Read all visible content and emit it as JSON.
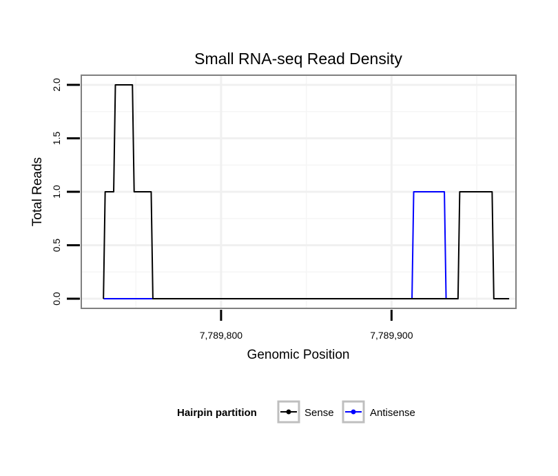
{
  "chart_data": {
    "type": "line",
    "title": "Small RNA-seq Read Density",
    "xlabel": "Genomic Position",
    "ylabel": "Total Reads",
    "xlim": [
      7789718,
      7789973
    ],
    "ylim": [
      -0.09,
      2.09
    ],
    "x_ticks": [
      7789800,
      7789900
    ],
    "x_tick_labels": [
      "7,789,800",
      "7,789,900"
    ],
    "y_ticks": [
      0,
      0.5,
      1,
      1.5,
      2
    ],
    "y_tick_labels": [
      "0.0",
      "0.5",
      "1.0",
      "1.5",
      "2.0"
    ],
    "grid": true,
    "legend": {
      "title": "Hairpin partition",
      "position": "bottom"
    },
    "series": [
      {
        "name": "Sense",
        "color": "#000000",
        "x": [
          7789731,
          7789732,
          7789737,
          7789738,
          7789748,
          7789749,
          7789759,
          7789760,
          7789935,
          7789936,
          7789939,
          7789940,
          7789959,
          7789960,
          7789969
        ],
        "y": [
          0,
          1,
          1,
          2,
          2,
          1,
          1,
          0,
          0,
          0,
          0,
          1,
          1,
          0,
          0
        ]
      },
      {
        "name": "Antisense",
        "color": "#0000ff",
        "x": [
          7789731,
          7789759,
          7789912,
          7789913,
          7789931,
          7789932,
          7789935
        ],
        "y": [
          0,
          0,
          0,
          1,
          1,
          0,
          0
        ]
      }
    ]
  }
}
